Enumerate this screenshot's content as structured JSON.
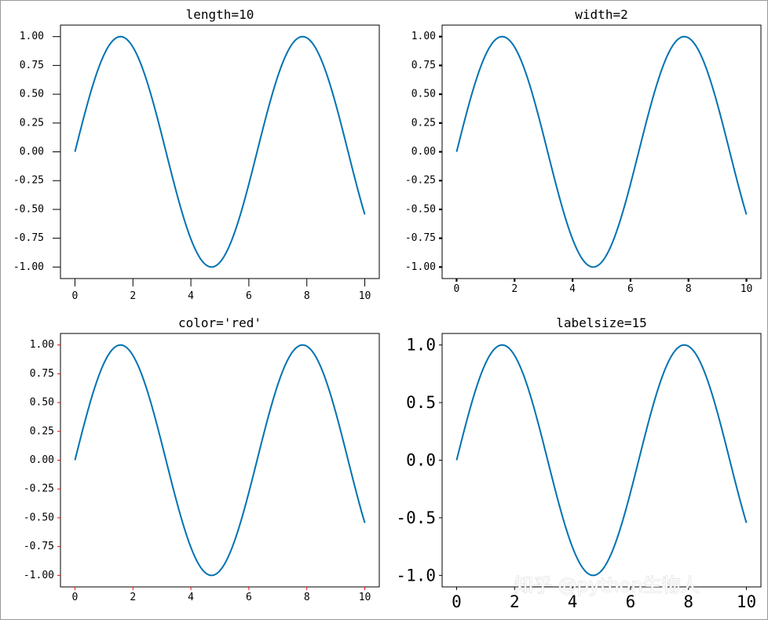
{
  "chart_data": [
    {
      "type": "line",
      "title": "length=10",
      "xlim": [
        -0.5,
        10.5
      ],
      "ylim": [
        -1.1,
        1.1
      ],
      "xticks": [
        0,
        2,
        4,
        6,
        8,
        10
      ],
      "xticklabels": [
        "0",
        "2",
        "4",
        "6",
        "8",
        "10"
      ],
      "yticks": [
        1.0,
        0.75,
        0.5,
        0.25,
        0.0,
        -0.25,
        -0.5,
        -0.75,
        -1.0
      ],
      "yticklabels": [
        "1.00",
        "0.75",
        "0.50",
        "0.25",
        "0.00",
        "-0.25",
        "-0.50",
        "-0.75",
        "-1.00"
      ],
      "grid": false,
      "tick_color": "#000000",
      "line_color": "#0072b2",
      "series": [
        {
          "function": "sin",
          "x_range": [
            0,
            10
          ]
        }
      ]
    },
    {
      "type": "line",
      "title": "width=2",
      "xlim": [
        -0.5,
        10.5
      ],
      "ylim": [
        -1.1,
        1.1
      ],
      "xticks": [
        0,
        2,
        4,
        6,
        8,
        10
      ],
      "xticklabels": [
        "0",
        "2",
        "4",
        "6",
        "8",
        "10"
      ],
      "yticks": [
        1.0,
        0.75,
        0.5,
        0.25,
        0.0,
        -0.25,
        -0.5,
        -0.75,
        -1.0
      ],
      "yticklabels": [
        "1.00",
        "0.75",
        "0.50",
        "0.25",
        "0.00",
        "-0.25",
        "-0.50",
        "-0.75",
        "-1.00"
      ],
      "grid": false,
      "tick_color": "#000000",
      "line_color": "#0072b2",
      "series": [
        {
          "function": "sin",
          "x_range": [
            0,
            10
          ]
        }
      ]
    },
    {
      "type": "line",
      "title": "color='red'",
      "xlim": [
        -0.5,
        10.5
      ],
      "ylim": [
        -1.1,
        1.1
      ],
      "xticks": [
        0,
        2,
        4,
        6,
        8,
        10
      ],
      "xticklabels": [
        "0",
        "2",
        "4",
        "6",
        "8",
        "10"
      ],
      "yticks": [
        1.0,
        0.75,
        0.5,
        0.25,
        0.0,
        -0.25,
        -0.5,
        -0.75,
        -1.0
      ],
      "yticklabels": [
        "1.00",
        "0.75",
        "0.50",
        "0.25",
        "0.00",
        "-0.25",
        "-0.50",
        "-0.75",
        "-1.00"
      ],
      "grid": false,
      "tick_color": "#ff0000",
      "line_color": "#0072b2",
      "series": [
        {
          "function": "sin",
          "x_range": [
            0,
            10
          ]
        }
      ]
    },
    {
      "type": "line",
      "title": "labelsize=15",
      "xlim": [
        -0.5,
        10.5
      ],
      "ylim": [
        -1.1,
        1.1
      ],
      "xticks": [
        0,
        2,
        4,
        6,
        8,
        10
      ],
      "xticklabels": [
        "0",
        "2",
        "4",
        "6",
        "8",
        "10"
      ],
      "yticks": [
        1.0,
        0.5,
        0.0,
        -0.5,
        -1.0
      ],
      "yticklabels": [
        "1.0",
        "0.5",
        "0.0",
        "-0.5",
        "-1.0"
      ],
      "grid": false,
      "tick_color": "#000000",
      "line_color": "#0072b2",
      "series": [
        {
          "function": "sin",
          "x_range": [
            0,
            10
          ]
        }
      ]
    }
  ],
  "watermark": "知乎 @python生物人"
}
